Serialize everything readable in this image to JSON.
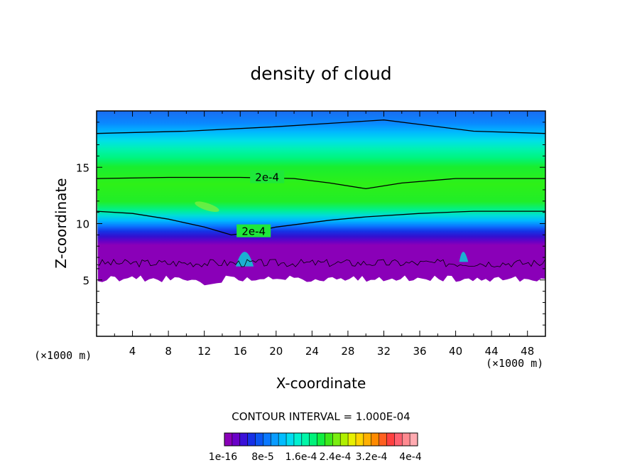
{
  "chart_data": {
    "type": "heatmap",
    "title": "density of cloud",
    "xlabel": "X-coordinate",
    "ylabel": "Z-coordinate",
    "x_unit": "(×1000 m)",
    "y_unit": "(×1000 m)",
    "xlim": [
      0,
      50
    ],
    "ylim": [
      0,
      20
    ],
    "x_ticks": [
      "4",
      "8",
      "12",
      "16",
      "20",
      "24",
      "28",
      "32",
      "36",
      "40",
      "44",
      "48"
    ],
    "y_ticks": [
      "5",
      "10",
      "15"
    ],
    "contour_interval_label": "CONTOUR INTERVAL = 1.000E-04",
    "colorbar": {
      "labels": [
        "1e-16",
        "8e-5",
        "1.6e-4",
        "2.4e-4",
        "3.2e-4",
        "4e-4"
      ],
      "colors": [
        "#8a00b8",
        "#6a00c8",
        "#3a10d8",
        "#1630e6",
        "#0a55f2",
        "#0a78ff",
        "#0a9cff",
        "#00bcff",
        "#00dcf0",
        "#00f0d0",
        "#00f6a8",
        "#00f27a",
        "#10ee40",
        "#3ee81a",
        "#7aee10",
        "#b0f000",
        "#e8f000",
        "#ffd400",
        "#ffb000",
        "#ff8a00",
        "#ff6020",
        "#ff4040",
        "#ff6070",
        "#ff8a90",
        "#ffaab0"
      ]
    },
    "contours": [
      {
        "label": "2e-4",
        "points": [
          [
            0,
            14.0
          ],
          [
            8,
            14.1
          ],
          [
            16,
            14.1
          ],
          [
            22,
            14.0
          ],
          [
            26,
            13.6
          ],
          [
            30,
            13.1
          ],
          [
            34,
            13.6
          ],
          [
            40,
            14.0
          ],
          [
            50,
            14.0
          ]
        ]
      },
      {
        "label": "2e-4",
        "points": [
          [
            0,
            11.1
          ],
          [
            4,
            10.9
          ],
          [
            8,
            10.4
          ],
          [
            12,
            9.7
          ],
          [
            15,
            9.0
          ],
          [
            17,
            9.2
          ],
          [
            20,
            9.7
          ],
          [
            26,
            10.3
          ],
          [
            30,
            10.6
          ],
          [
            36,
            10.9
          ],
          [
            42,
            11.1
          ],
          [
            50,
            11.1
          ]
        ]
      },
      {
        "label": "",
        "points": [
          [
            0,
            18.0
          ],
          [
            10,
            18.2
          ],
          [
            20,
            18.6
          ],
          [
            28,
            19.0
          ],
          [
            32,
            19.2
          ],
          [
            36,
            18.8
          ],
          [
            42,
            18.2
          ],
          [
            50,
            18.0
          ]
        ]
      }
    ]
  }
}
